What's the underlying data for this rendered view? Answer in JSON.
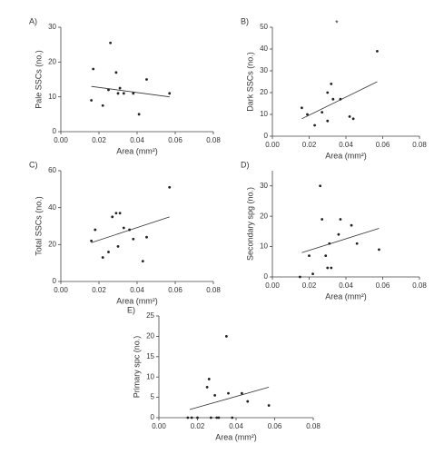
{
  "chart_data": [
    {
      "type": "scatter",
      "label": "A)",
      "xlabel": "Area (mm²)",
      "ylabel": "Pale SSCs (no.)",
      "x": [
        0.016,
        0.017,
        0.022,
        0.025,
        0.026,
        0.029,
        0.03,
        0.031,
        0.033,
        0.038,
        0.041,
        0.045,
        0.057
      ],
      "y": [
        9,
        18,
        7.5,
        12,
        25.5,
        17,
        11,
        12.5,
        11,
        11,
        5,
        15,
        11
      ],
      "trend": {
        "x": [
          0.016,
          0.057
        ],
        "y": [
          13,
          10
        ]
      },
      "xlim": [
        0,
        0.08
      ],
      "xticks": [
        {
          "value": 0,
          "label": "0.00"
        },
        {
          "value": 0.02,
          "label": "0.02"
        },
        {
          "value": 0.04,
          "label": "0.04"
        },
        {
          "value": 0.06,
          "label": "0.06"
        },
        {
          "value": 0.08,
          "label": "0.08"
        }
      ],
      "ylim": [
        0,
        30
      ],
      "yticks": [
        0,
        10,
        20,
        30
      ],
      "color": "#222"
    },
    {
      "type": "scatter",
      "label": "B)",
      "xlabel": "Area (mm²)",
      "ylabel": "Dark SSCs (no.)",
      "annotation": "*",
      "x": [
        0.016,
        0.019,
        0.023,
        0.027,
        0.03,
        0.03,
        0.032,
        0.033,
        0.037,
        0.042,
        0.044,
        0.057
      ],
      "y": [
        13,
        10,
        5,
        11,
        7,
        20,
        24,
        17,
        17,
        9,
        8,
        39
      ],
      "trend": {
        "x": [
          0.016,
          0.057
        ],
        "y": [
          8,
          25
        ]
      },
      "xlim": [
        0,
        0.08
      ],
      "xticks": [
        {
          "value": 0,
          "label": "0.00"
        },
        {
          "value": 0.02,
          "label": "0.02"
        },
        {
          "value": 0.04,
          "label": "0.04"
        },
        {
          "value": 0.06,
          "label": "0.06"
        },
        {
          "value": 0.08,
          "label": "0.08"
        }
      ],
      "ylim": [
        0,
        50
      ],
      "yticks": [
        0,
        10,
        20,
        30,
        40,
        50
      ],
      "color": "#222"
    },
    {
      "type": "scatter",
      "label": "C)",
      "xlabel": "Area (mm²)",
      "ylabel": "Total SSCs (no.)",
      "x": [
        0.016,
        0.018,
        0.022,
        0.025,
        0.027,
        0.029,
        0.03,
        0.031,
        0.033,
        0.036,
        0.038,
        0.043,
        0.045,
        0.057
      ],
      "y": [
        22,
        28,
        13,
        16,
        35,
        37,
        19,
        37,
        29,
        28,
        23,
        11,
        24,
        51
      ],
      "trend": {
        "x": [
          0.016,
          0.057
        ],
        "y": [
          21,
          35
        ]
      },
      "xlim": [
        0,
        0.08
      ],
      "xticks": [
        {
          "value": 0,
          "label": "0.00"
        },
        {
          "value": 0.02,
          "label": "0.02"
        },
        {
          "value": 0.04,
          "label": "0.04"
        },
        {
          "value": 0.06,
          "label": "0.06"
        },
        {
          "value": 0.08,
          "label": "0.08"
        }
      ],
      "ylim": [
        0,
        60
      ],
      "yticks": [
        0,
        20,
        40,
        60
      ],
      "color": "#222"
    },
    {
      "type": "scatter",
      "label": "D)",
      "xlabel": "Area (mm²)",
      "ylabel": "Secondary spg (no.)",
      "x": [
        0.015,
        0.02,
        0.022,
        0.026,
        0.027,
        0.029,
        0.03,
        0.031,
        0.032,
        0.036,
        0.037,
        0.043,
        0.046,
        0.058
      ],
      "y": [
        0,
        7,
        1,
        30,
        19,
        7,
        3,
        11,
        3,
        14,
        19,
        17,
        11,
        9
      ],
      "trend": {
        "x": [
          0.016,
          0.058
        ],
        "y": [
          8,
          16
        ]
      },
      "xlim": [
        0,
        0.08
      ],
      "xticks": [
        {
          "value": 0,
          "label": "0.00"
        },
        {
          "value": 0.02,
          "label": "0.02"
        },
        {
          "value": 0.04,
          "label": "0.04"
        },
        {
          "value": 0.06,
          "label": "0.06"
        },
        {
          "value": 0.08,
          "label": "0.08"
        }
      ],
      "ylim": [
        0,
        35
      ],
      "yticks": [
        0,
        10,
        20,
        30
      ],
      "color": "#222"
    },
    {
      "type": "scatter",
      "label": "E)",
      "xlabel": "Area (mm²)",
      "ylabel": "Primary spc (no.)",
      "x": [
        0.015,
        0.017,
        0.02,
        0.025,
        0.026,
        0.027,
        0.029,
        0.03,
        0.031,
        0.035,
        0.036,
        0.038,
        0.043,
        0.046,
        0.057
      ],
      "y": [
        0,
        0,
        0,
        7.5,
        9.5,
        0,
        5.5,
        0,
        0,
        20,
        6,
        0,
        6,
        4,
        3
      ],
      "trend": {
        "x": [
          0.016,
          0.057
        ],
        "y": [
          2,
          7.5
        ]
      },
      "xlim": [
        0,
        0.08
      ],
      "xticks": [
        {
          "value": 0,
          "label": "0.00"
        },
        {
          "value": 0.02,
          "label": "0.02"
        },
        {
          "value": 0.04,
          "label": "0.04"
        },
        {
          "value": 0.06,
          "label": "0.06"
        },
        {
          "value": 0.08,
          "label": "0.08"
        }
      ],
      "ylim": [
        0,
        25
      ],
      "yticks": [
        0,
        5,
        10,
        15,
        20,
        25
      ],
      "color": "#222"
    }
  ]
}
